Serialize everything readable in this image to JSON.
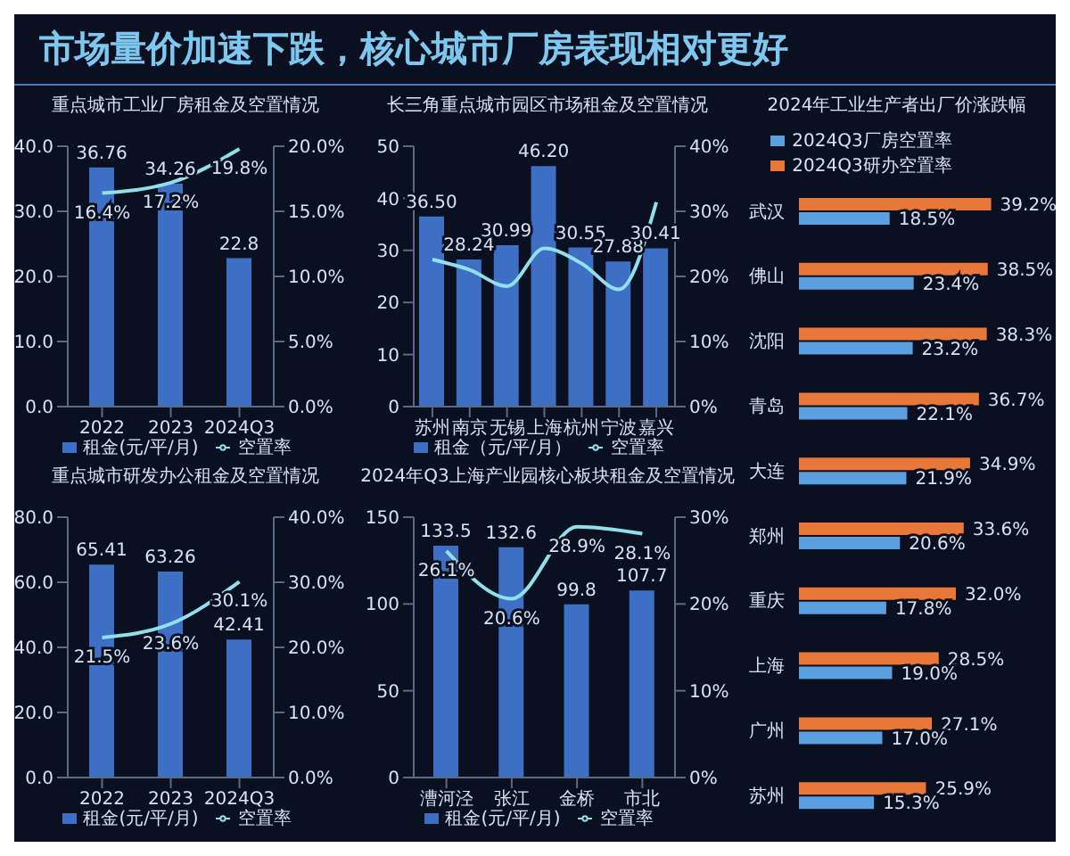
{
  "chart_data": [
    {
      "type": "other",
      "title": "市场量价加速下跌，核心城市厂房表现相对更好"
    },
    {
      "type": "bar",
      "title": "重点城市工业厂房租金及空置情况",
      "categories": [
        "2022",
        "2023",
        "2024Q3"
      ],
      "legend": "bottom",
      "marker": "none",
      "series": [
        {
          "name": "租金(元/平/月)",
          "type": "bar",
          "color": "#3d6fc4",
          "values": [
            36.76,
            34.26,
            22.8
          ],
          "value_labels": [
            "36.76",
            "34.26",
            "22.8"
          ]
        },
        {
          "name": "空置率",
          "type": "line",
          "axis": "y2",
          "color": "#8fe0ea",
          "values": [
            16.4,
            17.2,
            19.8
          ],
          "value_labels": [
            "16.4%",
            "17.2%",
            "19.8%"
          ]
        }
      ],
      "ylim": [
        0,
        40
      ],
      "yticks": [
        {
          "value": 0,
          "label": "0.0"
        },
        {
          "value": 10,
          "label": "10.0"
        },
        {
          "value": 20,
          "label": "20.0"
        },
        {
          "value": 30,
          "label": "30.0"
        },
        {
          "value": 40,
          "label": "40.0"
        }
      ],
      "y2lim": [
        0,
        20
      ],
      "y2ticks": [
        {
          "value": 0,
          "label": "0.0%"
        },
        {
          "value": 5,
          "label": "5.0%"
        },
        {
          "value": 10,
          "label": "10.0%"
        },
        {
          "value": 15,
          "label": "15.0%"
        },
        {
          "value": 20,
          "label": "20.0%"
        }
      ]
    },
    {
      "type": "bar",
      "title": "重点城市研发办公租金及空置情况",
      "categories": [
        "2022",
        "2023",
        "2024Q3"
      ],
      "legend": "bottom",
      "marker": "none",
      "series": [
        {
          "name": "租金(元/平/月)",
          "type": "bar",
          "color": "#3d6fc4",
          "values": [
            65.41,
            63.26,
            42.41
          ],
          "value_labels": [
            "65.41",
            "63.26",
            "42.41"
          ]
        },
        {
          "name": "空置率",
          "type": "line",
          "axis": "y2",
          "color": "#8fe0ea",
          "values": [
            21.5,
            23.6,
            30.1
          ],
          "value_labels": [
            "21.5%",
            "23.6%",
            "30.1%"
          ]
        }
      ],
      "ylim": [
        0,
        80
      ],
      "yticks": [
        {
          "value": 0,
          "label": "0.0"
        },
        {
          "value": 20,
          "label": "20.0"
        },
        {
          "value": 40,
          "label": "40.0"
        },
        {
          "value": 60,
          "label": "60.0"
        },
        {
          "value": 80,
          "label": "80.0"
        }
      ],
      "y2lim": [
        0,
        40
      ],
      "y2ticks": [
        {
          "value": 0,
          "label": "0.0%"
        },
        {
          "value": 10,
          "label": "10.0%"
        },
        {
          "value": 20,
          "label": "20.0%"
        },
        {
          "value": 30,
          "label": "30.0%"
        },
        {
          "value": 40,
          "label": "40.0%"
        }
      ]
    },
    {
      "type": "bar",
      "title": "长三角重点城市园区市场租金及空置情况",
      "categories": [
        "苏州",
        "南京",
        "无锡",
        "上海",
        "杭州",
        "宁波",
        "嘉兴"
      ],
      "legend": "bottom",
      "marker": "none",
      "series": [
        {
          "name": "租金（元/平/月）",
          "type": "bar",
          "color": "#3d6fc4",
          "values": [
            36.5,
            28.24,
            30.99,
            46.2,
            30.55,
            27.88,
            30.41
          ],
          "value_labels": [
            "36.50",
            "28.24",
            "30.99",
            "46.20",
            "30.55",
            "27.88",
            "30.41"
          ]
        },
        {
          "name": "空置率",
          "type": "line",
          "axis": "y2",
          "color": "#8fe0ea",
          "values": [
            22.6,
            21,
            18.5,
            24.3,
            22,
            18,
            31.4
          ]
        }
      ],
      "ylim": [
        0,
        50
      ],
      "yticks": [
        0,
        10,
        20,
        30,
        40,
        50
      ],
      "y2lim": [
        0,
        40
      ],
      "y2ticks": [
        {
          "value": 0,
          "label": "0%"
        },
        {
          "value": 10,
          "label": "10%"
        },
        {
          "value": 20,
          "label": "20%"
        },
        {
          "value": 30,
          "label": "30%"
        },
        {
          "value": 40,
          "label": "40%"
        }
      ]
    },
    {
      "type": "bar",
      "title": "2024年Q3上海产业园核心板块租金及空置情况",
      "categories": [
        "漕河泾",
        "张江",
        "金桥",
        "市北"
      ],
      "legend": "bottom",
      "marker": "none",
      "series": [
        {
          "name": "租金(元/平/月)",
          "type": "bar",
          "color": "#3d6fc4",
          "values": [
            133.5,
            132.6,
            99.8,
            107.7
          ],
          "value_labels": [
            "133.5",
            "132.6",
            "99.8",
            "107.7"
          ]
        },
        {
          "name": "空置率",
          "type": "line",
          "axis": "y2",
          "color": "#8fe0ea",
          "values": [
            26.1,
            20.6,
            28.9,
            28.1
          ],
          "value_labels": [
            "26.1%",
            "20.6%",
            "28.9%",
            "28.1%"
          ]
        }
      ],
      "ylim": [
        0,
        150
      ],
      "yticks": [
        0,
        50,
        100,
        150
      ],
      "y2lim": [
        0,
        30
      ],
      "y2ticks": [
        {
          "value": 0,
          "label": "0%"
        },
        {
          "value": 10,
          "label": "10%"
        },
        {
          "value": 20,
          "label": "20%"
        },
        {
          "value": 30,
          "label": "30%"
        }
      ]
    },
    {
      "type": "bar",
      "title": "2024年工业生产者出厂价涨跌幅",
      "orientation": "horizontal",
      "legend": "top",
      "tick_labels": "y",
      "categories": [
        "武汉",
        "佛山",
        "沈阳",
        "青岛",
        "大连",
        "郑州",
        "重庆",
        "上海",
        "广州",
        "苏州"
      ],
      "series": [
        {
          "name": "2024Q3研办空置率",
          "color": "#e8773a",
          "values": [
            39.2,
            38.5,
            38.3,
            36.7,
            34.9,
            33.6,
            32.0,
            28.5,
            27.1,
            25.9
          ],
          "value_labels": [
            "39.2%",
            "38.5%",
            "38.3%",
            "36.7%",
            "34.9%",
            "33.6%",
            "32.0%",
            "28.5%",
            "27.1%",
            "25.9%"
          ]
        },
        {
          "name": "2024Q3厂房空置率",
          "color": "#5aa0e0",
          "values": [
            18.5,
            23.4,
            23.2,
            22.1,
            21.9,
            20.6,
            17.8,
            19.0,
            17.0,
            15.3
          ],
          "value_labels": [
            "18.5%",
            "23.4%",
            "23.2%",
            "22.1%",
            "21.9%",
            "20.6%",
            "17.8%",
            "19.0%",
            "17.0%",
            "15.3%"
          ]
        }
      ]
    }
  ]
}
